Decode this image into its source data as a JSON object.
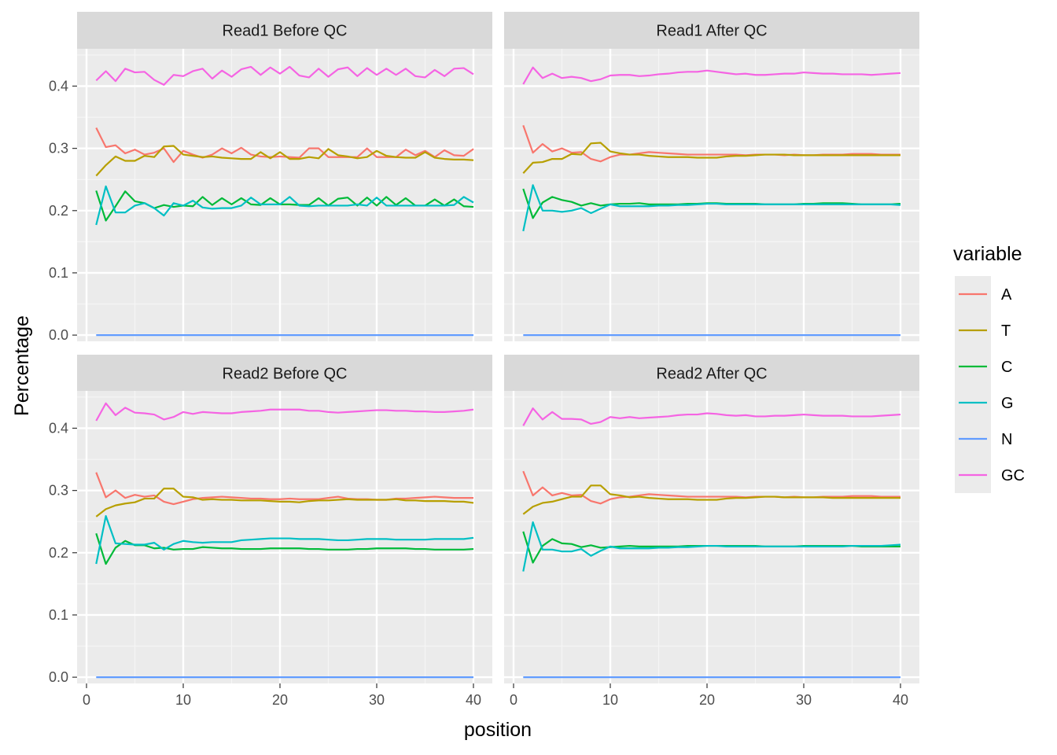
{
  "chart_data": {
    "type": "line",
    "xlabel": "position",
    "ylabel": "Percentage",
    "xlim": [
      0,
      40
    ],
    "ylim": [
      -0.01,
      0.46
    ],
    "x_ticks": [
      0,
      10,
      20,
      30,
      40
    ],
    "x_tick_labels": [
      "0",
      "10",
      "20",
      "30",
      "40"
    ],
    "y_ticks": [
      0.0,
      0.1,
      0.2,
      0.3,
      0.4
    ],
    "y_tick_labels": [
      "0.0",
      "0.1",
      "0.2",
      "0.3",
      "0.4"
    ],
    "legend": {
      "title": "variable",
      "position": "right",
      "entries": [
        {
          "name": "A",
          "color": "#F8766D"
        },
        {
          "name": "T",
          "color": "#B79F00"
        },
        {
          "name": "C",
          "color": "#00BA38"
        },
        {
          "name": "G",
          "color": "#00BFC4"
        },
        {
          "name": "N",
          "color": "#619CFF"
        },
        {
          "name": "GC",
          "color": "#F564E3"
        }
      ]
    },
    "facets": [
      {
        "title": "Read1 Before QC",
        "series": {
          "A": [
            0.333,
            0.302,
            0.305,
            0.292,
            0.298,
            0.29,
            0.293,
            0.3,
            0.278,
            0.296,
            0.29,
            0.285,
            0.29,
            0.3,
            0.292,
            0.301,
            0.29,
            0.287,
            0.286,
            0.287,
            0.286,
            0.285,
            0.3,
            0.3,
            0.286,
            0.286,
            0.286,
            0.286,
            0.3,
            0.286,
            0.286,
            0.286,
            0.298,
            0.289,
            0.296,
            0.286,
            0.297,
            0.289,
            0.288,
            0.299
          ],
          "T": [
            0.256,
            0.273,
            0.287,
            0.28,
            0.28,
            0.288,
            0.286,
            0.303,
            0.304,
            0.29,
            0.288,
            0.286,
            0.287,
            0.285,
            0.284,
            0.283,
            0.283,
            0.294,
            0.284,
            0.294,
            0.283,
            0.283,
            0.286,
            0.284,
            0.299,
            0.289,
            0.287,
            0.284,
            0.286,
            0.296,
            0.288,
            0.286,
            0.285,
            0.285,
            0.294,
            0.285,
            0.283,
            0.282,
            0.282,
            0.281
          ],
          "C": [
            0.232,
            0.184,
            0.207,
            0.231,
            0.215,
            0.212,
            0.204,
            0.209,
            0.206,
            0.208,
            0.207,
            0.222,
            0.209,
            0.22,
            0.21,
            0.22,
            0.21,
            0.209,
            0.22,
            0.21,
            0.21,
            0.209,
            0.209,
            0.22,
            0.208,
            0.219,
            0.221,
            0.208,
            0.221,
            0.208,
            0.222,
            0.209,
            0.22,
            0.208,
            0.208,
            0.218,
            0.208,
            0.218,
            0.207,
            0.206
          ],
          "G": [
            0.177,
            0.239,
            0.197,
            0.197,
            0.208,
            0.212,
            0.204,
            0.192,
            0.212,
            0.208,
            0.216,
            0.205,
            0.203,
            0.204,
            0.204,
            0.208,
            0.221,
            0.21,
            0.21,
            0.21,
            0.222,
            0.208,
            0.207,
            0.208,
            0.208,
            0.208,
            0.208,
            0.21,
            0.208,
            0.221,
            0.208,
            0.208,
            0.208,
            0.208,
            0.208,
            0.208,
            0.208,
            0.209,
            0.222,
            0.213
          ],
          "N": [
            0,
            0,
            0,
            0,
            0,
            0,
            0,
            0,
            0,
            0,
            0,
            0,
            0,
            0,
            0,
            0,
            0,
            0,
            0,
            0,
            0,
            0,
            0,
            0,
            0,
            0,
            0,
            0,
            0,
            0,
            0,
            0,
            0,
            0,
            0,
            0,
            0,
            0,
            0,
            0
          ],
          "GC": [
            0.409,
            0.424,
            0.408,
            0.428,
            0.422,
            0.423,
            0.41,
            0.402,
            0.418,
            0.416,
            0.424,
            0.428,
            0.412,
            0.425,
            0.415,
            0.427,
            0.431,
            0.418,
            0.43,
            0.42,
            0.431,
            0.417,
            0.414,
            0.428,
            0.415,
            0.427,
            0.43,
            0.416,
            0.429,
            0.418,
            0.428,
            0.418,
            0.428,
            0.416,
            0.414,
            0.426,
            0.416,
            0.428,
            0.429,
            0.419
          ]
        }
      },
      {
        "title": "Read1 After QC",
        "series": {
          "A": [
            0.337,
            0.293,
            0.307,
            0.295,
            0.3,
            0.293,
            0.294,
            0.283,
            0.279,
            0.286,
            0.29,
            0.29,
            0.292,
            0.294,
            0.293,
            0.292,
            0.291,
            0.29,
            0.29,
            0.29,
            0.29,
            0.29,
            0.29,
            0.289,
            0.29,
            0.29,
            0.29,
            0.289,
            0.29,
            0.289,
            0.289,
            0.29,
            0.29,
            0.29,
            0.291,
            0.291,
            0.291,
            0.29,
            0.29,
            0.29
          ],
          "T": [
            0.26,
            0.277,
            0.278,
            0.283,
            0.283,
            0.291,
            0.29,
            0.308,
            0.309,
            0.295,
            0.292,
            0.29,
            0.29,
            0.288,
            0.287,
            0.286,
            0.286,
            0.286,
            0.285,
            0.285,
            0.285,
            0.287,
            0.288,
            0.288,
            0.289,
            0.29,
            0.29,
            0.29,
            0.289,
            0.289,
            0.289,
            0.289,
            0.289,
            0.289,
            0.289,
            0.289,
            0.289,
            0.289,
            0.289,
            0.289
          ],
          "C": [
            0.235,
            0.188,
            0.213,
            0.222,
            0.217,
            0.214,
            0.208,
            0.212,
            0.208,
            0.21,
            0.211,
            0.211,
            0.212,
            0.21,
            0.21,
            0.21,
            0.21,
            0.211,
            0.211,
            0.212,
            0.212,
            0.211,
            0.211,
            0.211,
            0.211,
            0.21,
            0.21,
            0.21,
            0.21,
            0.211,
            0.211,
            0.212,
            0.212,
            0.212,
            0.211,
            0.21,
            0.21,
            0.21,
            0.21,
            0.211
          ],
          "G": [
            0.167,
            0.241,
            0.2,
            0.2,
            0.198,
            0.2,
            0.204,
            0.196,
            0.203,
            0.21,
            0.207,
            0.207,
            0.207,
            0.207,
            0.208,
            0.208,
            0.209,
            0.209,
            0.21,
            0.211,
            0.211,
            0.21,
            0.21,
            0.21,
            0.21,
            0.21,
            0.21,
            0.21,
            0.21,
            0.21,
            0.21,
            0.21,
            0.21,
            0.21,
            0.21,
            0.21,
            0.21,
            0.21,
            0.21,
            0.209
          ],
          "N": [
            0,
            0,
            0,
            0,
            0,
            0,
            0,
            0,
            0,
            0,
            0,
            0,
            0,
            0,
            0,
            0,
            0,
            0,
            0,
            0,
            0,
            0,
            0,
            0,
            0,
            0,
            0,
            0,
            0,
            0,
            0,
            0,
            0,
            0,
            0,
            0,
            0,
            0,
            0,
            0
          ],
          "GC": [
            0.403,
            0.43,
            0.413,
            0.42,
            0.413,
            0.415,
            0.413,
            0.408,
            0.411,
            0.417,
            0.418,
            0.418,
            0.416,
            0.417,
            0.419,
            0.42,
            0.422,
            0.423,
            0.423,
            0.425,
            0.423,
            0.421,
            0.419,
            0.42,
            0.418,
            0.418,
            0.419,
            0.42,
            0.42,
            0.422,
            0.421,
            0.42,
            0.42,
            0.419,
            0.419,
            0.419,
            0.418,
            0.419,
            0.42,
            0.421
          ]
        }
      },
      {
        "title": "Read2 Before QC",
        "series": {
          "A": [
            0.329,
            0.289,
            0.3,
            0.288,
            0.293,
            0.29,
            0.292,
            0.282,
            0.278,
            0.282,
            0.286,
            0.288,
            0.289,
            0.29,
            0.289,
            0.288,
            0.287,
            0.287,
            0.286,
            0.286,
            0.287,
            0.286,
            0.286,
            0.286,
            0.288,
            0.29,
            0.287,
            0.286,
            0.286,
            0.285,
            0.285,
            0.287,
            0.287,
            0.288,
            0.289,
            0.29,
            0.289,
            0.288,
            0.288,
            0.288
          ],
          "T": [
            0.258,
            0.27,
            0.276,
            0.279,
            0.281,
            0.287,
            0.287,
            0.303,
            0.303,
            0.29,
            0.289,
            0.285,
            0.286,
            0.285,
            0.285,
            0.284,
            0.284,
            0.284,
            0.283,
            0.282,
            0.282,
            0.281,
            0.283,
            0.284,
            0.284,
            0.285,
            0.286,
            0.285,
            0.285,
            0.285,
            0.285,
            0.286,
            0.284,
            0.284,
            0.283,
            0.283,
            0.283,
            0.282,
            0.282,
            0.28
          ],
          "C": [
            0.231,
            0.182,
            0.208,
            0.219,
            0.212,
            0.212,
            0.207,
            0.208,
            0.205,
            0.206,
            0.206,
            0.209,
            0.208,
            0.207,
            0.207,
            0.206,
            0.206,
            0.206,
            0.207,
            0.207,
            0.207,
            0.207,
            0.206,
            0.206,
            0.205,
            0.205,
            0.205,
            0.206,
            0.206,
            0.207,
            0.207,
            0.207,
            0.207,
            0.206,
            0.206,
            0.205,
            0.205,
            0.205,
            0.205,
            0.206
          ],
          "G": [
            0.182,
            0.259,
            0.215,
            0.214,
            0.213,
            0.213,
            0.216,
            0.205,
            0.214,
            0.219,
            0.217,
            0.216,
            0.217,
            0.217,
            0.217,
            0.22,
            0.221,
            0.222,
            0.223,
            0.223,
            0.223,
            0.222,
            0.222,
            0.222,
            0.221,
            0.22,
            0.22,
            0.221,
            0.222,
            0.222,
            0.222,
            0.221,
            0.221,
            0.221,
            0.221,
            0.222,
            0.222,
            0.222,
            0.222,
            0.224
          ],
          "N": [
            0,
            0,
            0,
            0,
            0,
            0,
            0,
            0,
            0,
            0,
            0,
            0,
            0,
            0,
            0,
            0,
            0,
            0,
            0,
            0,
            0,
            0,
            0,
            0,
            0,
            0,
            0,
            0,
            0,
            0,
            0,
            0,
            0,
            0,
            0,
            0,
            0,
            0,
            0,
            0
          ],
          "GC": [
            0.412,
            0.44,
            0.421,
            0.433,
            0.425,
            0.424,
            0.422,
            0.414,
            0.418,
            0.426,
            0.423,
            0.426,
            0.425,
            0.424,
            0.424,
            0.426,
            0.427,
            0.428,
            0.43,
            0.43,
            0.43,
            0.43,
            0.428,
            0.428,
            0.426,
            0.425,
            0.426,
            0.427,
            0.428,
            0.429,
            0.429,
            0.428,
            0.428,
            0.427,
            0.427,
            0.426,
            0.426,
            0.427,
            0.428,
            0.43
          ]
        }
      },
      {
        "title": "Read2 After QC",
        "series": {
          "A": [
            0.331,
            0.292,
            0.305,
            0.292,
            0.296,
            0.292,
            0.293,
            0.283,
            0.279,
            0.286,
            0.289,
            0.29,
            0.292,
            0.294,
            0.293,
            0.292,
            0.291,
            0.29,
            0.29,
            0.29,
            0.29,
            0.29,
            0.29,
            0.289,
            0.29,
            0.29,
            0.29,
            0.289,
            0.29,
            0.289,
            0.289,
            0.29,
            0.29,
            0.29,
            0.291,
            0.291,
            0.291,
            0.29,
            0.29,
            0.29
          ],
          "T": [
            0.262,
            0.274,
            0.28,
            0.282,
            0.286,
            0.29,
            0.29,
            0.308,
            0.308,
            0.294,
            0.292,
            0.289,
            0.29,
            0.288,
            0.287,
            0.286,
            0.286,
            0.286,
            0.285,
            0.285,
            0.285,
            0.287,
            0.288,
            0.288,
            0.289,
            0.29,
            0.29,
            0.289,
            0.289,
            0.289,
            0.289,
            0.289,
            0.288,
            0.288,
            0.288,
            0.288,
            0.288,
            0.288,
            0.288,
            0.288
          ],
          "C": [
            0.234,
            0.184,
            0.211,
            0.222,
            0.215,
            0.214,
            0.209,
            0.212,
            0.208,
            0.209,
            0.21,
            0.211,
            0.21,
            0.21,
            0.21,
            0.21,
            0.21,
            0.211,
            0.211,
            0.211,
            0.211,
            0.211,
            0.211,
            0.211,
            0.211,
            0.21,
            0.21,
            0.21,
            0.21,
            0.211,
            0.211,
            0.211,
            0.211,
            0.211,
            0.211,
            0.21,
            0.21,
            0.21,
            0.21,
            0.21
          ],
          "G": [
            0.17,
            0.249,
            0.205,
            0.205,
            0.202,
            0.202,
            0.206,
            0.195,
            0.203,
            0.21,
            0.207,
            0.207,
            0.207,
            0.207,
            0.208,
            0.208,
            0.209,
            0.209,
            0.21,
            0.211,
            0.211,
            0.21,
            0.21,
            0.21,
            0.21,
            0.21,
            0.21,
            0.21,
            0.21,
            0.21,
            0.21,
            0.21,
            0.21,
            0.21,
            0.211,
            0.211,
            0.211,
            0.211,
            0.212,
            0.213
          ],
          "N": [
            0,
            0,
            0,
            0,
            0,
            0,
            0,
            0,
            0,
            0,
            0,
            0,
            0,
            0,
            0,
            0,
            0,
            0,
            0,
            0,
            0,
            0,
            0,
            0,
            0,
            0,
            0,
            0,
            0,
            0,
            0,
            0,
            0,
            0,
            0,
            0,
            0,
            0,
            0,
            0
          ],
          "GC": [
            0.404,
            0.432,
            0.414,
            0.426,
            0.415,
            0.415,
            0.414,
            0.407,
            0.41,
            0.418,
            0.416,
            0.418,
            0.416,
            0.417,
            0.418,
            0.419,
            0.421,
            0.422,
            0.422,
            0.424,
            0.423,
            0.421,
            0.42,
            0.421,
            0.419,
            0.419,
            0.42,
            0.42,
            0.421,
            0.422,
            0.421,
            0.42,
            0.42,
            0.42,
            0.419,
            0.419,
            0.419,
            0.42,
            0.421,
            0.422
          ]
        }
      }
    ]
  }
}
